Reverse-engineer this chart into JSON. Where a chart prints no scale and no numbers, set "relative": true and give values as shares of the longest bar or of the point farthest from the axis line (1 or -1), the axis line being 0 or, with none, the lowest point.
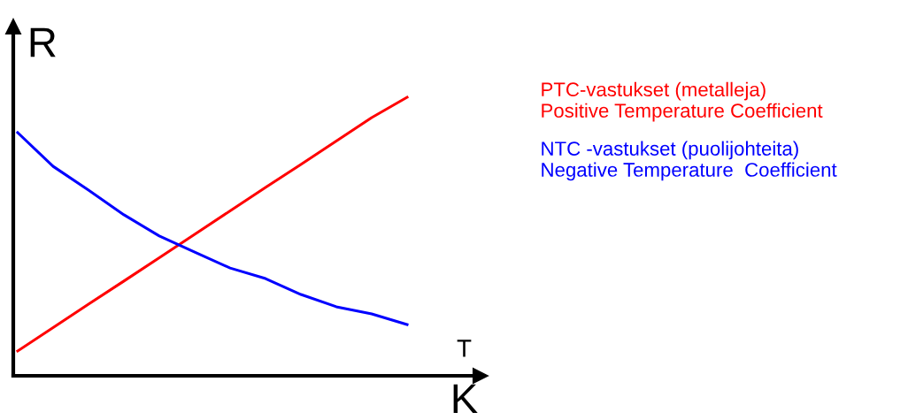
{
  "chart_data": {
    "type": "line",
    "relative": true,
    "categories": [
      null,
      null,
      null,
      null,
      null,
      null,
      null,
      null,
      null,
      null,
      null,
      null
    ],
    "series": [
      {
        "name": "PTC-vastukset (metalleja)\nPositive Temperature Coefficient",
        "color": "#ff0000",
        "values": [
          0.089,
          0.173,
          0.257,
          0.34,
          0.424,
          0.508,
          0.592,
          0.676,
          0.759,
          0.843,
          0.927,
          1.0
        ]
      },
      {
        "name": "NTC -vastukset (puolijohteita)\nNegative Temperature  Coefficient",
        "color": "#0000ff",
        "values": [
          0.873,
          0.752,
          0.667,
          0.578,
          0.502,
          0.444,
          0.387,
          0.349,
          0.292,
          0.248,
          0.222,
          0.184
        ]
      }
    ],
    "ylabel": "R",
    "xlabel": "T",
    "annotations": [
      "K"
    ],
    "legend": "right",
    "grid": false,
    "marker": "none",
    "line_style": "solid"
  }
}
